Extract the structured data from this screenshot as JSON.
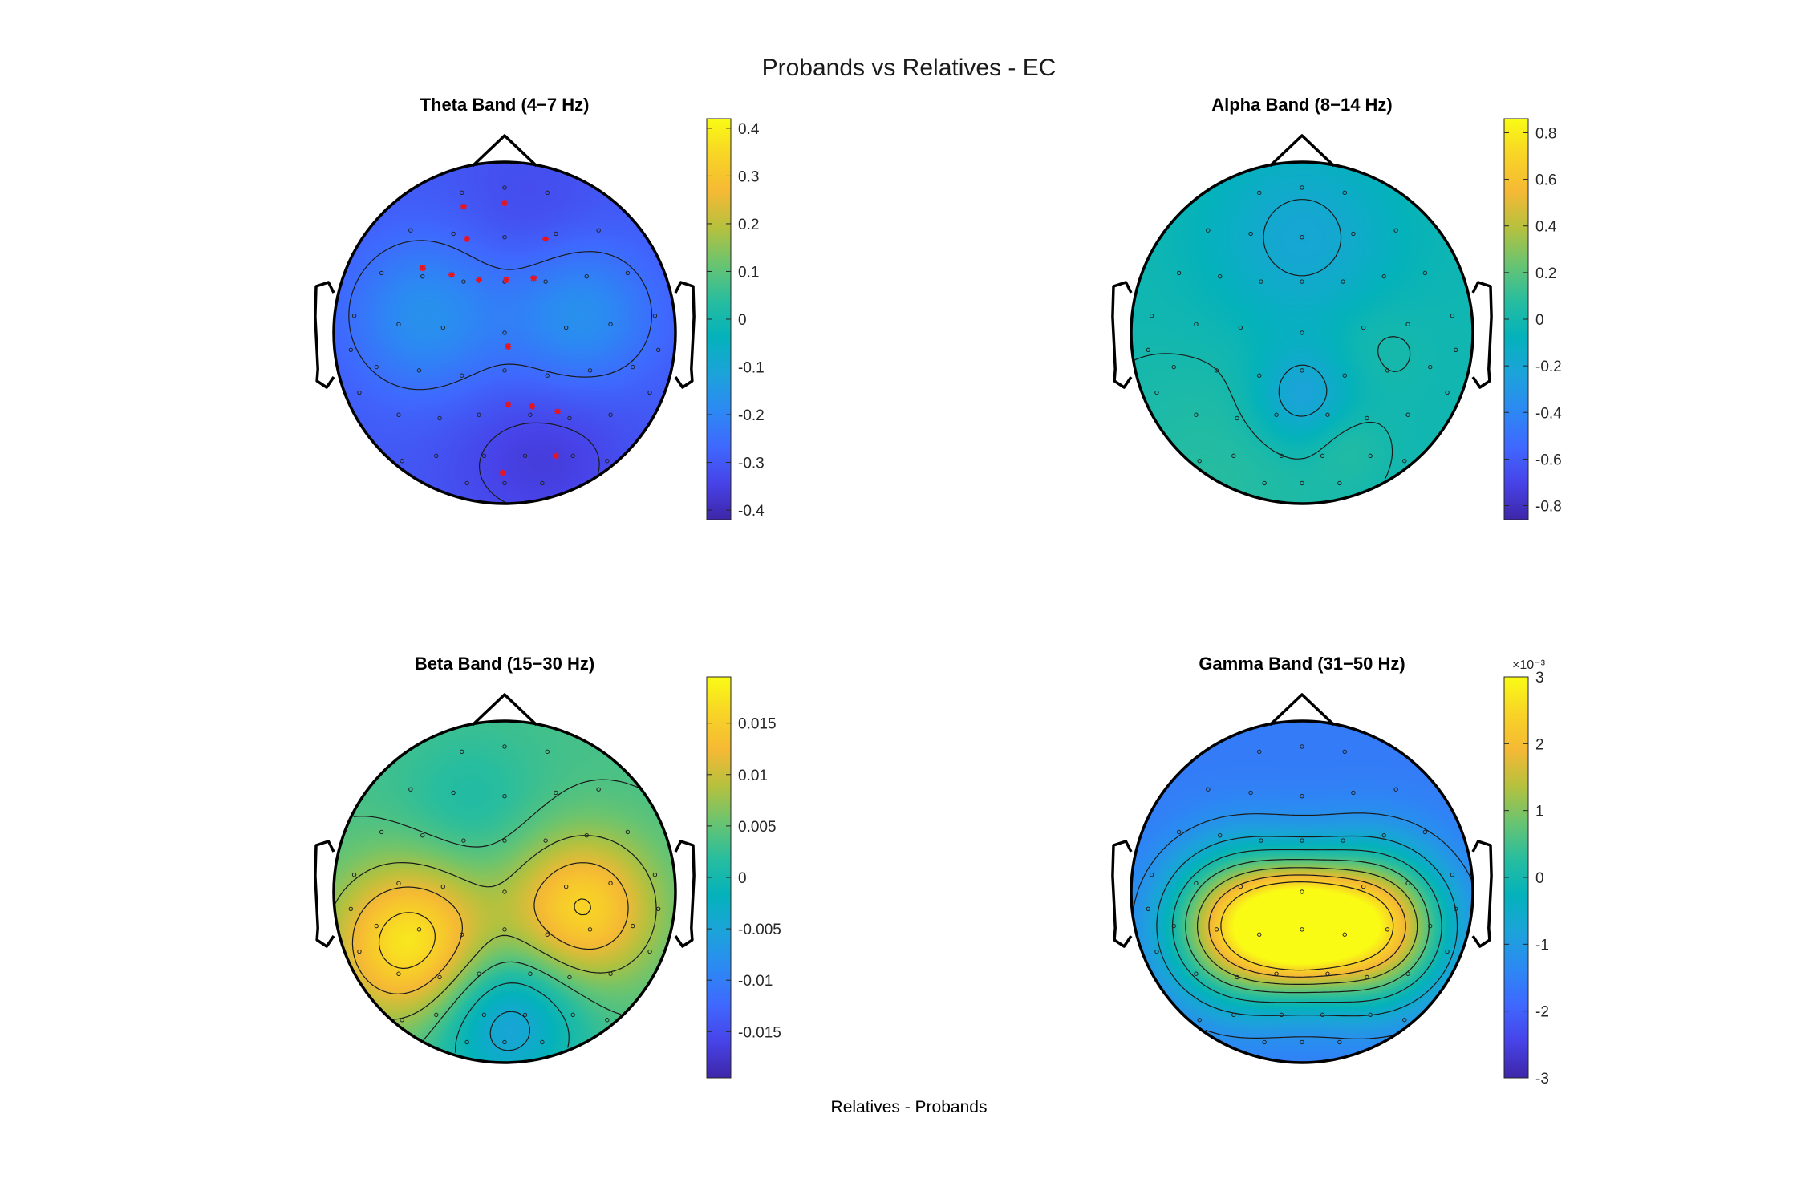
{
  "title": "Probands vs Relatives - EC",
  "footer_label": "Relatives - Probands",
  "colormap": [
    "#3e26a8",
    "#4743e8",
    "#3f68fe",
    "#2c89f3",
    "#1ca3da",
    "#04b2bb",
    "#27bd9f",
    "#68c471",
    "#b5c13e",
    "#f5b935",
    "#f8d426",
    "#f9fb15"
  ],
  "colors": {
    "contour": "#1a1a1a",
    "head_outline": "#000000",
    "electrode": "#222222",
    "significant_marker": "#e8141e"
  },
  "chart_data": [
    {
      "type": "heatmap",
      "subtype": "scalp-topography",
      "title": "Theta Band (4−7 Hz)",
      "clim": [
        -0.42,
        0.42
      ],
      "colorbar_ticks": [
        "-0.4",
        "-0.3",
        "-0.2",
        "-0.1",
        "0",
        "0.1",
        "0.2",
        "0.3",
        "0.4"
      ],
      "colorbar_tick_values": [
        -0.4,
        -0.3,
        -0.2,
        -0.1,
        0,
        0.1,
        0.2,
        0.3,
        0.4
      ],
      "colorbar_exponent": "",
      "base_value": -0.3,
      "sources": [
        {
          "x": 0.15,
          "y": -0.72,
          "value": -0.33,
          "spread": 0.3
        },
        {
          "x": -0.46,
          "y": -0.1,
          "value": -0.17,
          "spread": 0.32
        },
        {
          "x": 0.44,
          "y": -0.1,
          "value": -0.17,
          "spread": 0.3
        },
        {
          "x": 0.3,
          "y": 0.72,
          "value": -0.35,
          "spread": 0.32
        },
        {
          "x": -0.1,
          "y": 0.75,
          "value": -0.32,
          "spread": 0.3
        }
      ],
      "significant_electrodes": [
        [
          -0.24,
          -0.74
        ],
        [
          0.0,
          -0.76
        ],
        [
          0.24,
          -0.55
        ],
        [
          -0.22,
          -0.55
        ],
        [
          -0.48,
          -0.38
        ],
        [
          -0.31,
          -0.34
        ],
        [
          -0.15,
          -0.31
        ],
        [
          0.01,
          -0.31
        ],
        [
          0.17,
          -0.32
        ],
        [
          0.02,
          0.08
        ],
        [
          0.02,
          0.42
        ],
        [
          0.16,
          0.43
        ],
        [
          0.31,
          0.46
        ],
        [
          0.3,
          0.72
        ],
        [
          -0.01,
          0.82
        ]
      ]
    },
    {
      "type": "heatmap",
      "subtype": "scalp-topography",
      "title": "Alpha Band (8−14 Hz)",
      "clim": [
        -0.86,
        0.86
      ],
      "colorbar_ticks": [
        "-0.8",
        "-0.6",
        "-0.4",
        "-0.2",
        "0",
        "0.2",
        "0.4",
        "0.6",
        "0.8"
      ],
      "colorbar_tick_values": [
        -0.8,
        -0.6,
        -0.4,
        -0.2,
        0,
        0.2,
        0.4,
        0.6,
        0.8
      ],
      "colorbar_exponent": "",
      "base_value": -0.02,
      "sources": [
        {
          "x": 0.0,
          "y": -0.55,
          "value": -0.2,
          "spread": 0.4
        },
        {
          "x": 0.0,
          "y": 0.38,
          "value": -0.25,
          "spread": 0.2
        },
        {
          "x": -0.5,
          "y": 0.85,
          "value": 0.07,
          "spread": 0.5
        },
        {
          "x": 0.45,
          "y": 0.05,
          "value": 0.03,
          "spread": 0.2
        },
        {
          "x": 0.25,
          "y": 0.65,
          "value": 0.05,
          "spread": 0.15
        }
      ],
      "significant_electrodes": []
    },
    {
      "type": "heatmap",
      "subtype": "scalp-topography",
      "title": "Beta Band (15−30 Hz)",
      "clim": [
        -0.0195,
        0.0195
      ],
      "colorbar_ticks": [
        "-0.015",
        "-0.01",
        "-0.005",
        "0",
        "0.005",
        "0.01",
        "0.015"
      ],
      "colorbar_tick_values": [
        -0.015,
        -0.01,
        -0.005,
        0,
        0.005,
        0.01,
        0.015
      ],
      "colorbar_exponent": "",
      "base_value": 0.0035,
      "sources": [
        {
          "x": -0.55,
          "y": 0.3,
          "value": 0.018,
          "spread": 0.32
        },
        {
          "x": 0.45,
          "y": 0.1,
          "value": 0.016,
          "spread": 0.3
        },
        {
          "x": 0.0,
          "y": 0.75,
          "value": -0.006,
          "spread": 0.3
        },
        {
          "x": -0.2,
          "y": -0.5,
          "value": 0.001,
          "spread": 0.3
        }
      ],
      "significant_electrodes": []
    },
    {
      "type": "heatmap",
      "subtype": "scalp-topography",
      "title": "Gamma Band (31−50 Hz)",
      "clim": [
        -3.0,
        3.0
      ],
      "colorbar_ticks": [
        "-3",
        "-2",
        "-1",
        "0",
        "1",
        "2",
        "3"
      ],
      "colorbar_tick_values": [
        -3,
        -2,
        -1,
        0,
        1,
        2,
        3
      ],
      "colorbar_exponent": "×10⁻³",
      "base_value": -1.6,
      "sources": [
        {
          "x": -0.35,
          "y": 0.2,
          "value": 2.4,
          "spread": 0.3
        },
        {
          "x": 0.4,
          "y": 0.2,
          "value": 2.6,
          "spread": 0.3
        },
        {
          "x": 0.0,
          "y": 0.2,
          "value": 1.2,
          "spread": 0.22
        },
        {
          "x": -0.15,
          "y": -0.9,
          "value": -1.6,
          "spread": 0.2
        },
        {
          "x": 0.0,
          "y": 0.85,
          "value": -1.6,
          "spread": 0.25
        }
      ],
      "significant_electrodes": []
    }
  ],
  "electrodes": [
    [
      -0.25,
      -0.82
    ],
    [
      0.0,
      -0.85
    ],
    [
      0.25,
      -0.82
    ],
    [
      -0.55,
      -0.6
    ],
    [
      -0.3,
      -0.58
    ],
    [
      0.0,
      -0.56
    ],
    [
      0.3,
      -0.58
    ],
    [
      0.55,
      -0.6
    ],
    [
      -0.72,
      -0.35
    ],
    [
      -0.48,
      -0.33
    ],
    [
      -0.24,
      -0.3
    ],
    [
      0.0,
      -0.3
    ],
    [
      0.24,
      -0.3
    ],
    [
      0.48,
      -0.33
    ],
    [
      0.72,
      -0.35
    ],
    [
      -0.88,
      -0.1
    ],
    [
      -0.62,
      -0.05
    ],
    [
      -0.36,
      -0.03
    ],
    [
      0.0,
      0.0
    ],
    [
      0.36,
      -0.03
    ],
    [
      0.62,
      -0.05
    ],
    [
      0.88,
      -0.1
    ],
    [
      -0.75,
      0.2
    ],
    [
      -0.5,
      0.22
    ],
    [
      -0.25,
      0.25
    ],
    [
      0.0,
      0.22
    ],
    [
      0.25,
      0.25
    ],
    [
      0.5,
      0.22
    ],
    [
      0.75,
      0.2
    ],
    [
      -0.62,
      0.48
    ],
    [
      -0.38,
      0.5
    ],
    [
      -0.15,
      0.48
    ],
    [
      0.15,
      0.48
    ],
    [
      0.38,
      0.5
    ],
    [
      0.62,
      0.48
    ],
    [
      -0.4,
      0.72
    ],
    [
      -0.12,
      0.72
    ],
    [
      0.12,
      0.72
    ],
    [
      0.4,
      0.72
    ],
    [
      -0.22,
      0.88
    ],
    [
      0.0,
      0.88
    ],
    [
      0.22,
      0.88
    ],
    [
      -0.85,
      0.35
    ],
    [
      0.85,
      0.35
    ],
    [
      -0.9,
      0.1
    ],
    [
      0.9,
      0.1
    ],
    [
      -0.6,
      0.75
    ],
    [
      0.6,
      0.75
    ]
  ]
}
